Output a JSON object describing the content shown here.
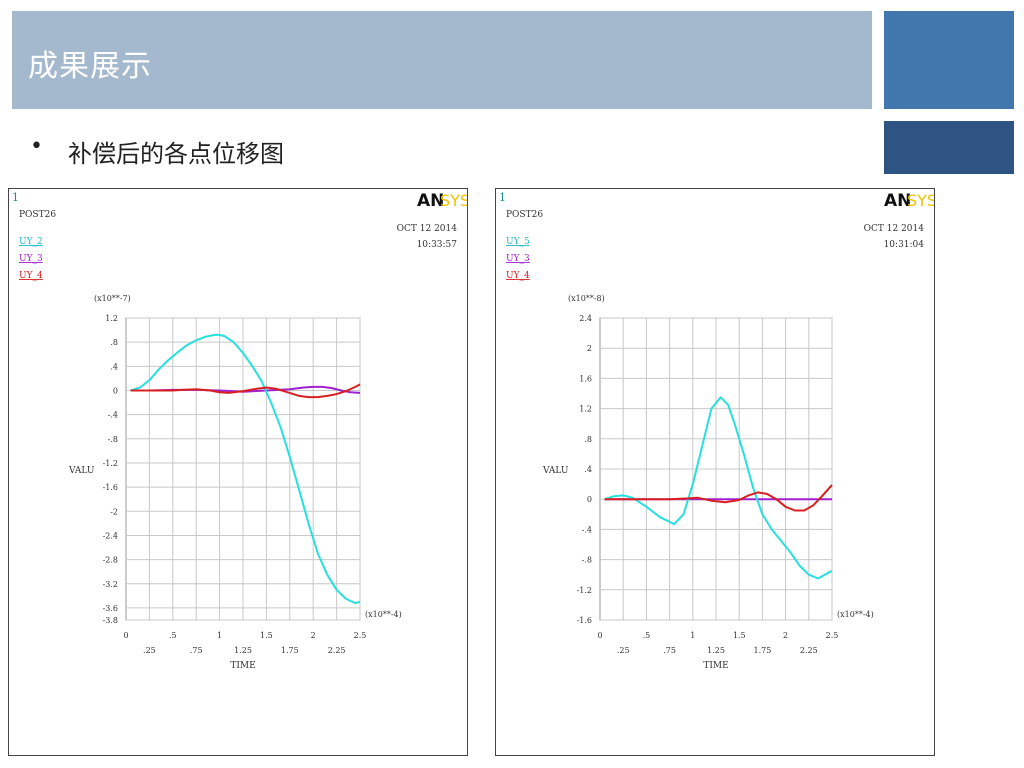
{
  "slide": {
    "title": "成果展示",
    "bullet": "•",
    "subtitle": "补偿后的各点位移图"
  },
  "colors": {
    "title_bar": "#a5b9ce",
    "accent_block_1": "#4077ad",
    "accent_block_2": "#2d5483"
  },
  "chart_data": [
    {
      "type": "line",
      "window_number": "1",
      "logo_an": "AN",
      "logo_sys": "SYS",
      "post_label": "POST26",
      "date": "OCT 12 2014",
      "time": "10:33:57",
      "ylabel": "VALU",
      "xlabel": "TIME",
      "y_multiplier": "(x10**-7)",
      "x_multiplier": "(x10**-4)",
      "ylim": [
        -3.8,
        1.2
      ],
      "xlim": [
        0,
        3.5
      ],
      "y_ticks": [
        1.2,
        0.8,
        0.4,
        0,
        -0.4,
        -0.8,
        -1.2,
        -1.6,
        -2,
        -2.4,
        -2.8,
        -3.2,
        -3.6,
        -3.8
      ],
      "y_tick_labels": [
        "1.2",
        ".8",
        ".4",
        "0",
        "-.4",
        "-.8",
        "-1.2",
        "-1.6",
        "-2",
        "-2.4",
        "-2.8",
        "-3.2",
        "-3.6",
        "-3.8"
      ],
      "x_ticks_major": [
        0,
        0.5,
        1,
        1.5,
        2,
        2.5
      ],
      "x_tick_labels_major": [
        "0",
        ".5",
        "1",
        "1.5",
        "2",
        "2.5"
      ],
      "x_ticks_minor": [
        0.25,
        0.75,
        1.25,
        1.75,
        2.25
      ],
      "x_tick_labels_minor": [
        ".25",
        ".75",
        "1.25",
        "1.75",
        "2.25"
      ],
      "grid": true,
      "series": [
        {
          "name": "UY_2",
          "color": "#26e0e0",
          "x": [
            0.05,
            0.15,
            0.25,
            0.35,
            0.45,
            0.55,
            0.65,
            0.75,
            0.85,
            0.95,
            1.0,
            1.05,
            1.15,
            1.25,
            1.35,
            1.45,
            1.55,
            1.65,
            1.75,
            1.85,
            1.95,
            2.05,
            2.15,
            2.25,
            2.35,
            2.45,
            2.5
          ],
          "y": [
            0,
            0.05,
            0.17,
            0.35,
            0.5,
            0.63,
            0.75,
            0.83,
            0.89,
            0.92,
            0.92,
            0.9,
            0.8,
            0.62,
            0.4,
            0.15,
            -0.2,
            -0.6,
            -1.1,
            -1.65,
            -2.2,
            -2.7,
            -3.05,
            -3.3,
            -3.45,
            -3.52,
            -3.5
          ]
        },
        {
          "name": "UY_3",
          "color": "#a020d0",
          "x": [
            0.05,
            0.25,
            0.5,
            0.75,
            1.0,
            1.25,
            1.5,
            1.75,
            1.9,
            2.0,
            2.1,
            2.2,
            2.3,
            2.4,
            2.5
          ],
          "y": [
            0,
            0,
            0.01,
            0.01,
            0,
            -0.02,
            0,
            0.02,
            0.05,
            0.06,
            0.06,
            0.04,
            0,
            -0.03,
            -0.04
          ]
        },
        {
          "name": "UY_4",
          "color": "#d82020",
          "x": [
            0.05,
            0.25,
            0.5,
            0.6,
            0.75,
            0.9,
            1.0,
            1.1,
            1.25,
            1.4,
            1.5,
            1.6,
            1.75,
            1.85,
            1.95,
            2.05,
            2.15,
            2.25,
            2.35,
            2.45,
            2.5
          ],
          "y": [
            0,
            0,
            0,
            0.01,
            0.02,
            0,
            -0.03,
            -0.04,
            -0.01,
            0.03,
            0.05,
            0.03,
            -0.04,
            -0.09,
            -0.11,
            -0.11,
            -0.09,
            -0.06,
            -0.01,
            0.06,
            0.1
          ]
        }
      ]
    },
    {
      "type": "line",
      "window_number": "1",
      "logo_an": "AN",
      "logo_sys": "SYS",
      "post_label": "POST26",
      "date": "OCT 12 2014",
      "time": "10:31:04",
      "ylabel": "VALU",
      "xlabel": "TIME",
      "y_multiplier": "(x10**-8)",
      "x_multiplier": "(x10**-4)",
      "ylim": [
        -1.6,
        2.4
      ],
      "xlim": [
        0,
        3.5
      ],
      "y_ticks": [
        2.4,
        2,
        1.6,
        1.2,
        0.8,
        0.4,
        0,
        -0.4,
        -0.8,
        -1.2,
        -1.6
      ],
      "y_tick_labels": [
        "2.4",
        "2",
        "1.6",
        "1.2",
        ".8",
        ".4",
        "0",
        "-.4",
        "-.8",
        "-1.2",
        "-1.6"
      ],
      "x_ticks_major": [
        0,
        0.5,
        1,
        1.5,
        2,
        2.5
      ],
      "x_tick_labels_major": [
        "0",
        ".5",
        "1",
        "1.5",
        "2",
        "2.5"
      ],
      "x_ticks_minor": [
        0.25,
        0.75,
        1.25,
        1.75,
        2.25
      ],
      "x_tick_labels_minor": [
        ".25",
        ".75",
        "1.25",
        "1.75",
        "2.25"
      ],
      "grid": true,
      "series": [
        {
          "name": "UY_5",
          "color": "#26e0e0",
          "x": [
            0.05,
            0.15,
            0.25,
            0.35,
            0.5,
            0.65,
            0.8,
            0.9,
            1.0,
            1.1,
            1.2,
            1.3,
            1.38,
            1.45,
            1.55,
            1.65,
            1.75,
            1.85,
            1.95,
            2.05,
            2.15,
            2.25,
            2.35,
            2.45,
            2.5
          ],
          "y": [
            0,
            0.04,
            0.05,
            0.02,
            -0.1,
            -0.24,
            -0.33,
            -0.2,
            0.2,
            0.7,
            1.2,
            1.35,
            1.25,
            1.0,
            0.6,
            0.15,
            -0.2,
            -0.4,
            -0.55,
            -0.7,
            -0.88,
            -1.0,
            -1.05,
            -0.98,
            -0.95
          ]
        },
        {
          "name": "UY_3",
          "color": "#a020d0",
          "x": [
            0.05,
            0.5,
            1.0,
            1.5,
            2.0,
            2.5
          ],
          "y": [
            0,
            0,
            0,
            0,
            0,
            0
          ]
        },
        {
          "name": "UY_4",
          "color": "#d82020",
          "x": [
            0.05,
            0.25,
            0.5,
            0.75,
            0.95,
            1.05,
            1.2,
            1.35,
            1.5,
            1.6,
            1.7,
            1.8,
            1.9,
            2.0,
            2.1,
            2.2,
            2.3,
            2.4,
            2.5
          ],
          "y": [
            0,
            0,
            0,
            0,
            0.01,
            0.02,
            -0.02,
            -0.04,
            -0.01,
            0.05,
            0.09,
            0.07,
            0,
            -0.1,
            -0.15,
            -0.15,
            -0.08,
            0.05,
            0.19
          ]
        }
      ]
    }
  ]
}
